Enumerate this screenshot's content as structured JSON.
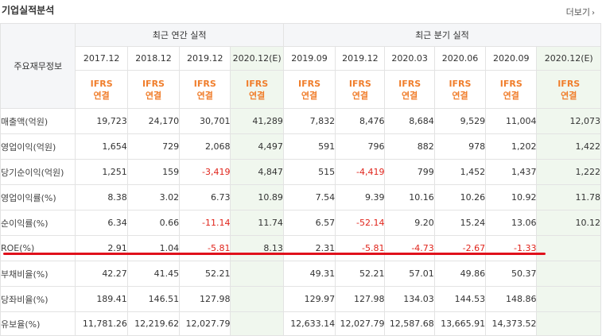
{
  "header": {
    "title": "기업실적분석",
    "more_label": "더보기",
    "more_arrow": "›"
  },
  "table": {
    "row_header": "주요재무정보",
    "groups": {
      "annual": "최근 연간 실적",
      "quarterly": "최근 분기 실적"
    },
    "periods": [
      {
        "label": "2017.12",
        "est": false
      },
      {
        "label": "2018.12",
        "est": false
      },
      {
        "label": "2019.12",
        "est": false
      },
      {
        "label": "2020.12(E)",
        "est": true
      },
      {
        "label": "2019.09",
        "est": false
      },
      {
        "label": "2019.12",
        "est": false
      },
      {
        "label": "2020.03",
        "est": false
      },
      {
        "label": "2020.06",
        "est": false
      },
      {
        "label": "2020.09",
        "est": false
      },
      {
        "label": "2020.12(E)",
        "est": true
      }
    ],
    "ifrs": {
      "line1": "IFRS",
      "line2": "연결"
    },
    "rows": [
      {
        "label": "매출액(억원)",
        "values": [
          "19,723",
          "24,170",
          "30,701",
          "41,289",
          "7,832",
          "8,476",
          "8,684",
          "9,529",
          "11,004",
          "12,073"
        ]
      },
      {
        "label": "영업이익(억원)",
        "values": [
          "1,654",
          "729",
          "2,068",
          "4,497",
          "591",
          "796",
          "882",
          "978",
          "1,202",
          "1,422"
        ]
      },
      {
        "label": "당기순이익(억원)",
        "values": [
          "1,251",
          "159",
          "-3,419",
          "4,847",
          "515",
          "-4,419",
          "799",
          "1,452",
          "1,437",
          "1,222"
        ]
      },
      {
        "label": "영업이익률(%)",
        "values": [
          "8.38",
          "3.02",
          "6.73",
          "10.89",
          "7.54",
          "9.39",
          "10.16",
          "10.26",
          "10.92",
          "11.78"
        ]
      },
      {
        "label": "순이익률(%)",
        "values": [
          "6.34",
          "0.66",
          "-11.14",
          "11.74",
          "6.57",
          "-52.14",
          "9.20",
          "15.24",
          "13.06",
          "10.12"
        ]
      },
      {
        "label": "ROE(%)",
        "values": [
          "2.91",
          "1.04",
          "-5.81",
          "8.13",
          "2.31",
          "-5.81",
          "-4.73",
          "-2.67",
          "-1.33",
          ""
        ]
      },
      {
        "label": "부채비율(%)",
        "values": [
          "42.27",
          "41.45",
          "52.21",
          "",
          "49.31",
          "52.21",
          "57.01",
          "49.86",
          "50.37",
          ""
        ]
      },
      {
        "label": "당좌비율(%)",
        "values": [
          "189.41",
          "146.51",
          "127.98",
          "",
          "129.97",
          "127.98",
          "134.03",
          "144.53",
          "148.86",
          ""
        ]
      },
      {
        "label": "유보율(%)",
        "values": [
          "11,781.26",
          "12,219.62",
          "12,027.79",
          "",
          "12,633.14",
          "12,027.79",
          "12,587.68",
          "13,665.91",
          "14,373.52",
          ""
        ]
      }
    ]
  },
  "colors": {
    "ifrs": "#f07e2c",
    "negative": "#e0241b",
    "highlight_line": "#e0111b",
    "estimate_bg": "#f0f7ee"
  }
}
